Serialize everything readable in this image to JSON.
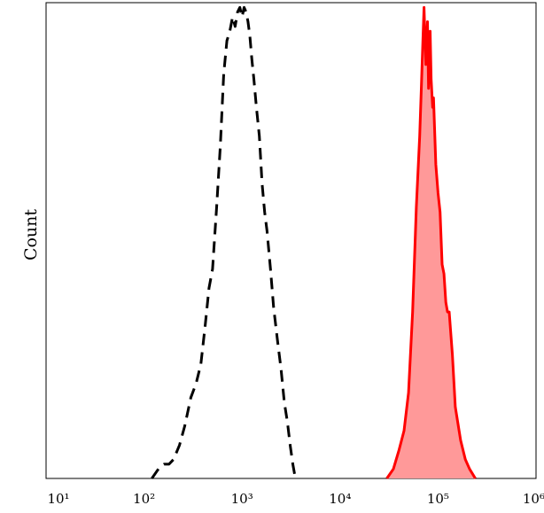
{
  "chart_data": {
    "type": "area",
    "title": "",
    "xlabel": "",
    "ylabel": "Count",
    "x_scale": "log",
    "xlim": [
      10,
      1000000
    ],
    "ylim": [
      0,
      100
    ],
    "grid": false,
    "x_ticks": [
      {
        "value": 10,
        "label": "10¹"
      },
      {
        "value": 100,
        "label": "10²"
      },
      {
        "value": 1000,
        "label": "10³"
      },
      {
        "value": 10000,
        "label": "10⁴"
      },
      {
        "value": 100000,
        "label": "10⁵"
      },
      {
        "value": 1000000,
        "label": "10⁶"
      }
    ],
    "series": [
      {
        "style": "dashed-outline",
        "color": "#000000",
        "x": [
          120,
          140,
          160,
          180,
          200,
          230,
          260,
          300,
          340,
          380,
          420,
          460,
          500,
          550,
          600,
          650,
          700,
          750,
          800,
          850,
          900,
          950,
          1000,
          1050,
          1100,
          1150,
          1200,
          1260,
          1320,
          1400,
          1500,
          1600,
          1700,
          1800,
          1950,
          2100,
          2300,
          2500,
          2700,
          2900,
          3100,
          3300,
          3500
        ],
        "y": [
          0,
          2,
          3,
          3,
          4,
          7,
          11,
          17,
          20,
          24,
          32,
          40,
          44,
          57,
          70,
          85,
          92,
          94,
          97,
          95,
          98,
          99,
          97,
          99,
          98,
          96,
          93,
          88,
          84,
          78,
          72,
          62,
          56,
          52,
          44,
          36,
          29,
          23,
          16,
          12,
          7,
          3,
          0
        ]
      },
      {
        "style": "filled",
        "color": "#ff0000",
        "fill": "#ff9999",
        "x": [
          30000,
          35000,
          40000,
          45000,
          50000,
          55000,
          60000,
          65000,
          68000,
          70000,
          72000,
          75000,
          78000,
          80000,
          83000,
          85000,
          88000,
          90000,
          95000,
          100000,
          105000,
          110000,
          115000,
          120000,
          125000,
          130000,
          140000,
          150000,
          170000,
          190000,
          210000,
          240000
        ],
        "y": [
          0,
          2,
          6,
          10,
          18,
          35,
          57,
          72,
          84,
          92,
          99,
          87,
          96,
          82,
          94,
          84,
          78,
          80,
          66,
          60,
          56,
          45,
          43,
          37,
          35,
          35,
          26,
          15,
          8,
          4,
          2,
          0
        ]
      }
    ]
  }
}
